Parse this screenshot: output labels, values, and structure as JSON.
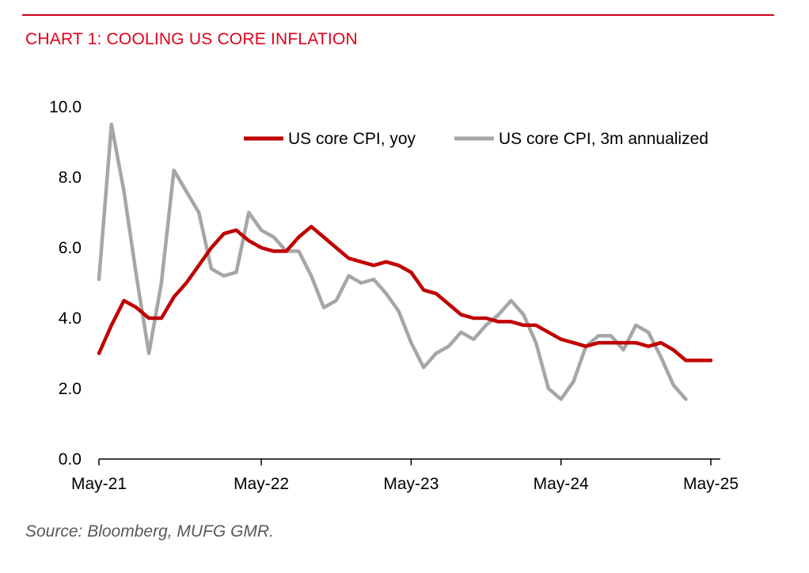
{
  "title": "CHART 1: COOLING US CORE INFLATION",
  "source": "Source: Bloomberg, MUFG GMR.",
  "colors": {
    "title": "#e0001b",
    "yoy": "#c00000",
    "annualized": "#a6a6a6"
  },
  "chart_data": {
    "type": "line",
    "title": "CHART 1: COOLING US CORE INFLATION",
    "xlabel": "",
    "ylabel": "",
    "ylim": [
      0,
      10
    ],
    "yticks": [
      "0.0",
      "2.0",
      "4.0",
      "6.0",
      "8.0",
      "10.0"
    ],
    "xticks": [
      "May-21",
      "May-22",
      "May-23",
      "May-24",
      "May-25"
    ],
    "x_start": "Apr-21",
    "x_end": "May-25",
    "grid": false,
    "legend": "top-right",
    "series": [
      {
        "name": "US core CPI, yoy",
        "color": "#c00000",
        "values": [
          3.0,
          3.8,
          4.5,
          4.3,
          4.0,
          4.0,
          4.6,
          5.0,
          5.5,
          6.0,
          6.4,
          6.5,
          6.2,
          6.0,
          5.9,
          5.9,
          6.3,
          6.6,
          6.3,
          6.0,
          5.7,
          5.6,
          5.5,
          5.6,
          5.5,
          5.3,
          4.8,
          4.7,
          4.4,
          4.1,
          4.0,
          4.0,
          3.9,
          3.9,
          3.8,
          3.8,
          3.6,
          3.4,
          3.3,
          3.2,
          3.3,
          3.3,
          3.3,
          3.3,
          3.2,
          3.3,
          3.1,
          2.8,
          2.8,
          2.8
        ]
      },
      {
        "name": "US core CPI, 3m annualized",
        "color": "#a6a6a6",
        "values": [
          5.1,
          9.5,
          7.6,
          5.2,
          3.0,
          5.0,
          8.2,
          7.6,
          7.0,
          5.4,
          5.2,
          5.3,
          7.0,
          6.5,
          6.3,
          5.9,
          5.9,
          5.2,
          4.3,
          4.5,
          5.2,
          5.0,
          5.1,
          4.7,
          4.2,
          3.3,
          2.6,
          3.0,
          3.2,
          3.6,
          3.4,
          3.8,
          4.1,
          4.5,
          4.1,
          3.3,
          2.0,
          1.7,
          2.2,
          3.2,
          3.5,
          3.5,
          3.1,
          3.8,
          3.6,
          2.9,
          2.1,
          1.7
        ]
      }
    ]
  }
}
